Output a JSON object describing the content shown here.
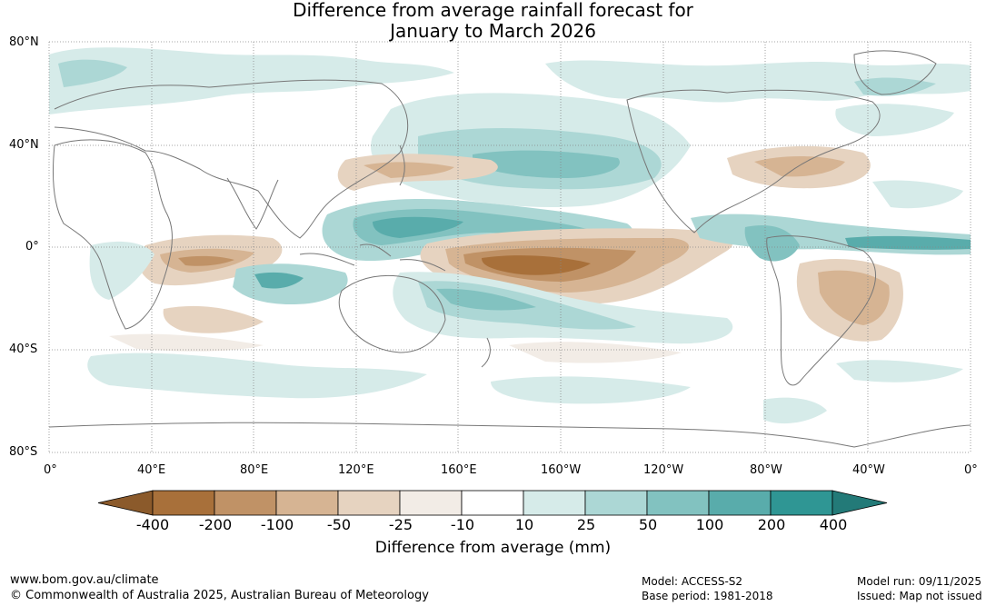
{
  "title": {
    "line1": "Difference from average rainfall forecast for",
    "line2": "January to March 2026"
  },
  "map": {
    "lat_labels": [
      "80°N",
      "40°N",
      "0°",
      "40°S",
      "80°S"
    ],
    "lon_labels": [
      "0°",
      "40°E",
      "80°E",
      "120°E",
      "160°E",
      "160°W",
      "120°W",
      "80°W",
      "40°W",
      "0°"
    ],
    "background_color": "#ffffff",
    "coastline_color": "#777777"
  },
  "legend": {
    "title": "Difference from average (mm)",
    "ticks": [
      "-400",
      "-200",
      "-100",
      "-50",
      "-25",
      "-10",
      "10",
      "25",
      "50",
      "100",
      "200",
      "400"
    ],
    "colors": [
      "#8b5a2b",
      "#a8703a",
      "#c09266",
      "#d6b493",
      "#e6d3c0",
      "#f2ece6",
      "#ffffff",
      "#d6ebe9",
      "#acd7d5",
      "#82c2c0",
      "#59acab",
      "#2f9694",
      "#237a78"
    ]
  },
  "footer": {
    "website": "www.bom.gov.au/climate",
    "copyright": "© Commonwealth of Australia 2025, Australian Bureau of Meteorology",
    "model": "Model: ACCESS-S2",
    "base_period": "Base period: 1981-2018",
    "model_run": "Model run: 09/11/2025",
    "issued": "Issued: Map not issued"
  }
}
